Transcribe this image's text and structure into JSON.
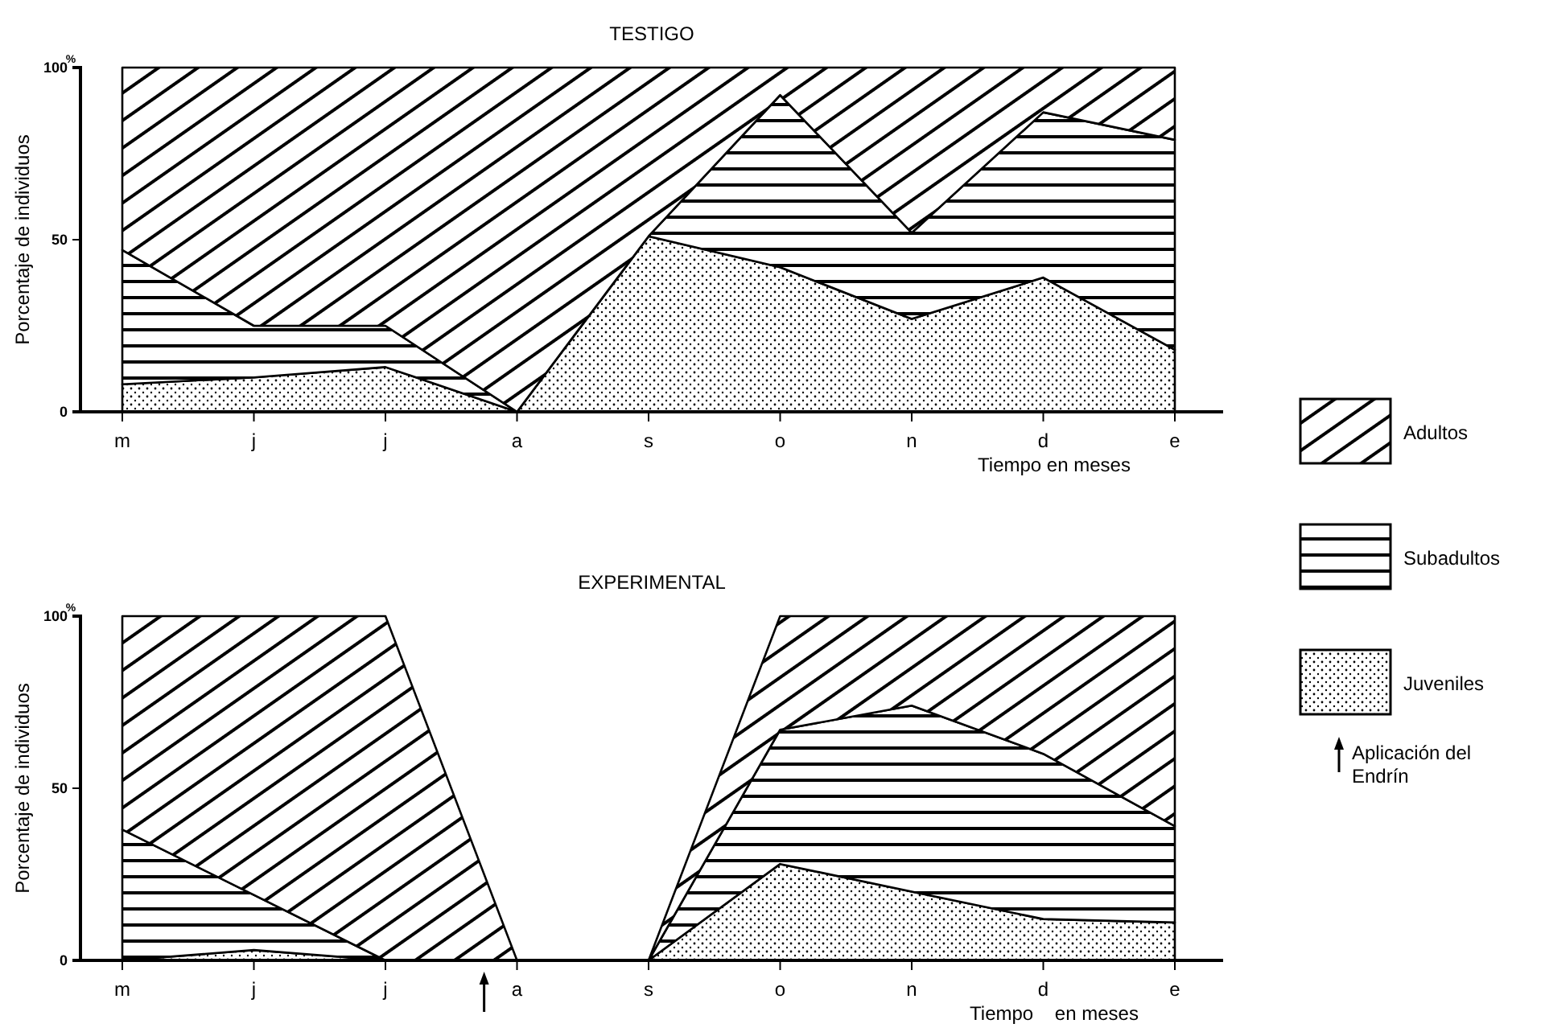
{
  "chart_data": [
    {
      "type": "area",
      "stacked": true,
      "title": "TESTIGO",
      "xlabel": "Tiempo en meses",
      "ylabel": "Porcentaje de individuos",
      "categories": [
        "m",
        "j",
        "j",
        "a",
        "s",
        "o",
        "n",
        "d",
        "e"
      ],
      "ylim": [
        0,
        100
      ],
      "yticks": [
        0,
        50,
        100
      ],
      "legend": "right",
      "annotations": [
        "%"
      ],
      "series": [
        {
          "name": "Juveniles",
          "color": "#000000",
          "values": [
            8,
            10,
            13,
            0,
            51,
            42,
            27,
            39,
            18
          ]
        },
        {
          "name": "Subadultos",
          "color": "#000000",
          "values": [
            39,
            15,
            12,
            0,
            0,
            50,
            25,
            48,
            61
          ]
        },
        {
          "name": "Adultos",
          "color": "#000000",
          "values": [
            53,
            75,
            75,
            100,
            49,
            8,
            48,
            13,
            21
          ]
        }
      ]
    },
    {
      "type": "area",
      "stacked": true,
      "title": "EXPERIMENTAL",
      "xlabel": "Tiempo    en meses",
      "ylabel": "Porcentaje de individuos",
      "categories": [
        "m",
        "j",
        "j",
        "a",
        "s",
        "o",
        "n",
        "d",
        "e"
      ],
      "ylim": [
        0,
        100
      ],
      "yticks": [
        0,
        50,
        100
      ],
      "annotations": [
        "%",
        "Aplicación del Endrín"
      ],
      "series": [
        {
          "color": "#000000",
          "values": [
            0,
            3,
            0,
            0,
            0,
            28,
            20,
            12,
            11
          ]
        },
        {
          "color": "#000000",
          "values": [
            38,
            16,
            0,
            0,
            0,
            39,
            54,
            48,
            28
          ]
        },
        {
          "color": "#000000",
          "values": [
            62,
            81,
            100,
            0,
            0,
            33,
            26,
            40,
            61
          ]
        }
      ]
    }
  ]
}
